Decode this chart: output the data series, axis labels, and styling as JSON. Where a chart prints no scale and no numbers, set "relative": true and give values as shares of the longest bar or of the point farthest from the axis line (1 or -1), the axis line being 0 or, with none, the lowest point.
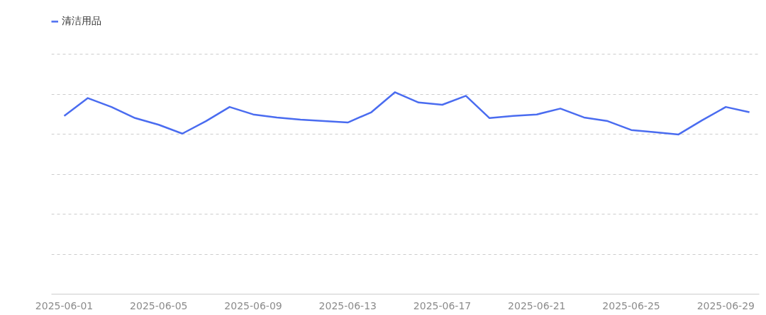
{
  "chart_data": {
    "type": "line",
    "relative": true,
    "grid": "y",
    "legend": "top left",
    "x": [
      "2025-06-01",
      "2025-06-02",
      "2025-06-03",
      "2025-06-04",
      "2025-06-05",
      "2025-06-06",
      "2025-06-07",
      "2025-06-08",
      "2025-06-09",
      "2025-06-10",
      "2025-06-11",
      "2025-06-12",
      "2025-06-13",
      "2025-06-14",
      "2025-06-15",
      "2025-06-16",
      "2025-06-17",
      "2025-06-18",
      "2025-06-19",
      "2025-06-20",
      "2025-06-21",
      "2025-06-22",
      "2025-06-23",
      "2025-06-24",
      "2025-06-25",
      "2025-06-26",
      "2025-06-27",
      "2025-06-28",
      "2025-06-29",
      "2025-06-30"
    ],
    "xlim": [
      "2025-05-31T11:00",
      "2025-06-30T10:00"
    ],
    "xticks": [
      "2025-06-01",
      "2025-06-05",
      "2025-06-09",
      "2025-06-13",
      "2025-06-17",
      "2025-06-21",
      "2025-06-25",
      "2025-06-29"
    ],
    "series": [
      {
        "name": "清洁用品",
        "color": "#4a6cf0",
        "values": [
          0.883,
          0.971,
          0.927,
          0.872,
          0.839,
          0.795,
          0.857,
          0.927,
          0.89,
          0.875,
          0.864,
          0.857,
          0.85,
          0.901,
          1,
          0.949,
          0.938,
          0.982,
          0.872,
          0.883,
          0.89,
          0.919,
          0.875,
          0.857,
          0.813,
          0.802,
          0.791,
          0.861,
          0.927,
          0.901
        ]
      }
    ]
  }
}
